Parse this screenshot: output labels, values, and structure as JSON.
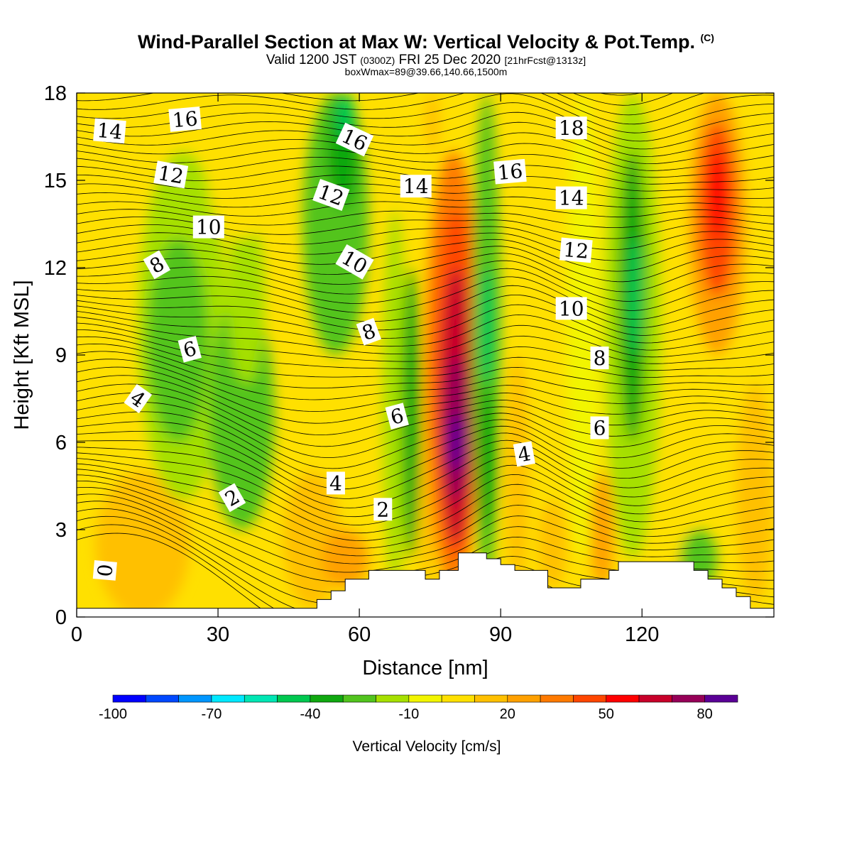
{
  "header": {
    "title": "Wind-Parallel Section at Max W: Vertical Velocity & Pot.Temp.",
    "title_mark": "(C)",
    "valid_prefix": "Valid 1200 JST",
    "valid_utc": "(0300Z)",
    "valid_date": "FRI 25 Dec 2020",
    "forecast": "[21hrFcst@1313z]",
    "box_info": "boxWmax=89@39.66,140.66,1500m"
  },
  "chart_data": {
    "type": "heatmap",
    "xlabel": "Distance [nm]",
    "ylabel": "Height [Kft MSL]",
    "xlim": [
      0,
      148
    ],
    "ylim": [
      0,
      18
    ],
    "x_ticks": [
      "0",
      "30",
      "60",
      "90",
      "120"
    ],
    "x_tick_values": [
      0,
      30,
      60,
      90,
      120
    ],
    "y_ticks": [
      "0",
      "3",
      "6",
      "9",
      "12",
      "15",
      "18"
    ],
    "y_tick_values": [
      0,
      3,
      6,
      9,
      12,
      15,
      18
    ],
    "colorbar": {
      "label": "Vertical Velocity [cm/s]",
      "tick_labels": [
        "-100",
        "-70",
        "-40",
        "-10",
        "20",
        "50",
        "80"
      ],
      "tick_values": [
        -100,
        -70,
        -40,
        -10,
        20,
        50,
        80
      ],
      "levels": [
        -100,
        -90,
        -80,
        -70,
        -60,
        -50,
        -40,
        -30,
        -20,
        -10,
        0,
        10,
        20,
        30,
        40,
        50,
        60,
        70,
        80,
        90
      ],
      "colors": [
        "#0000ff",
        "#0048ff",
        "#0096ff",
        "#00e8ff",
        "#00e6b4",
        "#00c850",
        "#10a810",
        "#52c41e",
        "#a6e000",
        "#f2f500",
        "#ffe000",
        "#ffc000",
        "#ffa000",
        "#ff7a00",
        "#ff4600",
        "#ff0000",
        "#c8002a",
        "#960058",
        "#5a0096"
      ]
    },
    "background_value": 0,
    "w_cells": [
      {
        "x": [
          4,
          24
        ],
        "y": [
          0,
          5
        ],
        "w": 15
      },
      {
        "x": [
          0,
          8
        ],
        "y": [
          4,
          10
        ],
        "w": 5
      },
      {
        "x": [
          13,
          32
        ],
        "y": [
          4,
          16
        ],
        "w": -20
      },
      {
        "x": [
          15,
          28
        ],
        "y": [
          6,
          13
        ],
        "w": -30
      },
      {
        "x": [
          28,
          42
        ],
        "y": [
          3,
          11
        ],
        "w": -30
      },
      {
        "x": [
          32,
          40
        ],
        "y": [
          8,
          14
        ],
        "w": -15
      },
      {
        "x": [
          28,
          42
        ],
        "y": [
          13,
          17
        ],
        "w": 5
      },
      {
        "x": [
          44,
          56
        ],
        "y": [
          0.3,
          5
        ],
        "w": 15
      },
      {
        "x": [
          52,
          62
        ],
        "y": [
          1,
          3
        ],
        "w": 25
      },
      {
        "x": [
          48,
          62
        ],
        "y": [
          9,
          18
        ],
        "w": -25
      },
      {
        "x": [
          53,
          60
        ],
        "y": [
          14,
          18
        ],
        "w": -40
      },
      {
        "x": [
          55,
          59
        ],
        "y": [
          16.5,
          18
        ],
        "w": -50
      },
      {
        "x": [
          65,
          70
        ],
        "y": [
          1,
          14
        ],
        "w": -15
      },
      {
        "x": [
          69,
          73
        ],
        "y": [
          2,
          12
        ],
        "w": -35
      },
      {
        "x": [
          73,
          76
        ],
        "y": [
          1,
          6
        ],
        "w": 10
      },
      {
        "x": [
          74,
          86
        ],
        "y": [
          1,
          16
        ],
        "w": 30
      },
      {
        "x": [
          76,
          85
        ],
        "y": [
          2,
          14
        ],
        "w": 45
      },
      {
        "x": [
          77,
          84
        ],
        "y": [
          2.5,
          12
        ],
        "w": 60
      },
      {
        "x": [
          78,
          83
        ],
        "y": [
          4,
          9
        ],
        "w": 70
      },
      {
        "x": [
          79,
          82
        ],
        "y": [
          5,
          7
        ],
        "w": 85
      },
      {
        "x": [
          74,
          77
        ],
        "y": [
          16,
          18
        ],
        "w": 15
      },
      {
        "x": [
          84,
          90
        ],
        "y": [
          1,
          18
        ],
        "w": -25
      },
      {
        "x": [
          85,
          89
        ],
        "y": [
          8,
          12
        ],
        "w": -50
      },
      {
        "x": [
          85,
          89
        ],
        "y": [
          3,
          8
        ],
        "w": -35
      },
      {
        "x": [
          91,
          96
        ],
        "y": [
          1,
          9
        ],
        "w": 10
      },
      {
        "x": [
          93,
          101
        ],
        "y": [
          12,
          18
        ],
        "w": 5
      },
      {
        "x": [
          98,
          104
        ],
        "y": [
          1,
          4
        ],
        "w": 15
      },
      {
        "x": [
          104,
          111
        ],
        "y": [
          2,
          18
        ],
        "w": -8
      },
      {
        "x": [
          109,
          114
        ],
        "y": [
          1,
          5
        ],
        "w": 25
      },
      {
        "x": [
          112,
          124
        ],
        "y": [
          2,
          18
        ],
        "w": -20
      },
      {
        "x": [
          115,
          121
        ],
        "y": [
          6,
          16
        ],
        "w": -35
      },
      {
        "x": [
          117,
          120
        ],
        "y": [
          9,
          13
        ],
        "w": -50
      },
      {
        "x": [
          124,
          130
        ],
        "y": [
          1,
          5
        ],
        "w": 5
      },
      {
        "x": [
          128,
          136
        ],
        "y": [
          1,
          3
        ],
        "w": -25
      },
      {
        "x": [
          130,
          142
        ],
        "y": [
          9,
          18
        ],
        "w": 25
      },
      {
        "x": [
          132,
          140
        ],
        "y": [
          11,
          17
        ],
        "w": 40
      },
      {
        "x": [
          134,
          138
        ],
        "y": [
          13,
          16
        ],
        "w": 50
      },
      {
        "x": [
          140,
          148
        ],
        "y": [
          0.5,
          8
        ],
        "w": 10
      }
    ],
    "terrain_steps": [
      {
        "x": [
          0,
          51
        ],
        "h": 0.3
      },
      {
        "x": [
          51,
          54
        ],
        "h": 0.6
      },
      {
        "x": [
          54,
          57
        ],
        "h": 0.9
      },
      {
        "x": [
          57,
          62
        ],
        "h": 1.3
      },
      {
        "x": [
          62,
          74
        ],
        "h": 1.6
      },
      {
        "x": [
          74,
          77
        ],
        "h": 1.3
      },
      {
        "x": [
          77,
          81
        ],
        "h": 1.6
      },
      {
        "x": [
          81,
          87
        ],
        "h": 2.2
      },
      {
        "x": [
          87,
          90
        ],
        "h": 2.0
      },
      {
        "x": [
          90,
          93
        ],
        "h": 1.8
      },
      {
        "x": [
          93,
          100
        ],
        "h": 1.6
      },
      {
        "x": [
          100,
          107
        ],
        "h": 1.0
      },
      {
        "x": [
          107,
          113
        ],
        "h": 1.3
      },
      {
        "x": [
          113,
          115
        ],
        "h": 1.6
      },
      {
        "x": [
          115,
          131
        ],
        "h": 1.9
      },
      {
        "x": [
          131,
          134
        ],
        "h": 1.6
      },
      {
        "x": [
          134,
          137
        ],
        "h": 1.3
      },
      {
        "x": [
          137,
          140
        ],
        "h": 1.0
      },
      {
        "x": [
          140,
          143
        ],
        "h": 0.7
      },
      {
        "x": [
          143,
          148
        ],
        "h": 0.3
      }
    ],
    "theta_labels": [
      {
        "text": "0",
        "x": 6,
        "y": 1.6,
        "rot": -85
      },
      {
        "text": "2",
        "x": 33,
        "y": 4.1,
        "rot": -30
      },
      {
        "text": "4",
        "x": 13,
        "y": 7.5,
        "rot": 35
      },
      {
        "text": "6",
        "x": 24,
        "y": 9.2,
        "rot": -15
      },
      {
        "text": "8",
        "x": 17,
        "y": 12.1,
        "rot": -30
      },
      {
        "text": "10",
        "x": 28,
        "y": 13.4,
        "rot": 0
      },
      {
        "text": "12",
        "x": 20,
        "y": 15.2,
        "rot": 10
      },
      {
        "text": "14",
        "x": 7,
        "y": 16.7,
        "rot": 5
      },
      {
        "text": "16",
        "x": 23,
        "y": 17.1,
        "rot": -5
      },
      {
        "text": "4",
        "x": 55,
        "y": 4.6,
        "rot": 0
      },
      {
        "text": "2",
        "x": 65,
        "y": 3.7,
        "rot": 0
      },
      {
        "text": "6",
        "x": 68,
        "y": 6.9,
        "rot": -15
      },
      {
        "text": "8",
        "x": 62,
        "y": 9.8,
        "rot": -20
      },
      {
        "text": "10",
        "x": 59,
        "y": 12.2,
        "rot": 30
      },
      {
        "text": "12",
        "x": 54,
        "y": 14.5,
        "rot": 20
      },
      {
        "text": "14",
        "x": 72,
        "y": 14.8,
        "rot": 0
      },
      {
        "text": "16",
        "x": 59,
        "y": 16.4,
        "rot": 25
      },
      {
        "text": "16",
        "x": 92,
        "y": 15.3,
        "rot": -5
      },
      {
        "text": "18",
        "x": 105,
        "y": 16.8,
        "rot": 0
      },
      {
        "text": "14",
        "x": 105,
        "y": 14.4,
        "rot": 0
      },
      {
        "text": "12",
        "x": 106,
        "y": 12.6,
        "rot": 5
      },
      {
        "text": "10",
        "x": 105,
        "y": 10.6,
        "rot": 0
      },
      {
        "text": "8",
        "x": 111,
        "y": 8.9,
        "rot": 0
      },
      {
        "text": "6",
        "x": 111,
        "y": 6.5,
        "rot": 0
      },
      {
        "text": "4",
        "x": 95,
        "y": 5.6,
        "rot": -10
      }
    ]
  }
}
